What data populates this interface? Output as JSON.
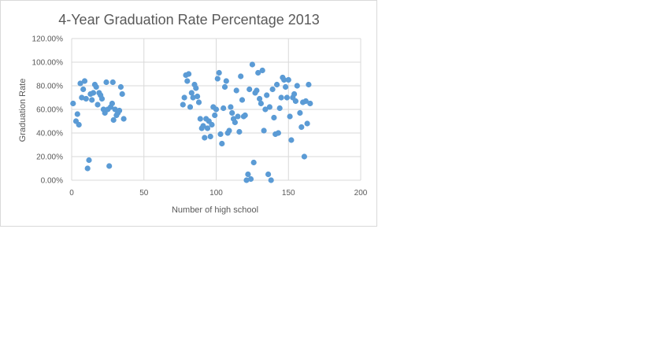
{
  "chart_data": {
    "type": "scatter",
    "title": "4-Year Graduation Rate Percentage 2013",
    "xlabel": "Number  of high school",
    "ylabel": "Graduation Rate",
    "xlim": [
      0,
      200
    ],
    "ylim": [
      0,
      1.2
    ],
    "x_ticks": [
      "0",
      "50",
      "100",
      "150",
      "200"
    ],
    "y_ticks": [
      "0.00%",
      "20.00%",
      "40.00%",
      "60.00%",
      "80.00%",
      "100.00%",
      "120.00%"
    ],
    "grid": true,
    "legend": "none",
    "marker_color": "#5b9bd5",
    "points": [
      [
        1,
        0.65
      ],
      [
        3,
        0.5
      ],
      [
        4,
        0.56
      ],
      [
        5,
        0.47
      ],
      [
        6,
        0.82
      ],
      [
        7,
        0.7
      ],
      [
        8,
        0.77
      ],
      [
        9,
        0.84
      ],
      [
        10,
        0.69
      ],
      [
        11,
        0.1
      ],
      [
        12,
        0.17
      ],
      [
        13,
        0.73
      ],
      [
        14,
        0.68
      ],
      [
        15,
        0.74
      ],
      [
        16,
        0.81
      ],
      [
        17,
        0.79
      ],
      [
        18,
        0.64
      ],
      [
        19,
        0.74
      ],
      [
        20,
        0.72
      ],
      [
        21,
        0.69
      ],
      [
        22,
        0.6
      ],
      [
        23,
        0.57
      ],
      [
        24,
        0.83
      ],
      [
        25,
        0.6
      ],
      [
        26,
        0.12
      ],
      [
        27,
        0.62
      ],
      [
        28,
        0.65
      ],
      [
        28.5,
        0.83
      ],
      [
        29,
        0.51
      ],
      [
        30,
        0.6
      ],
      [
        31,
        0.55
      ],
      [
        32,
        0.57
      ],
      [
        33,
        0.59
      ],
      [
        34,
        0.79
      ],
      [
        35,
        0.73
      ],
      [
        36,
        0.52
      ],
      [
        77,
        0.64
      ],
      [
        78,
        0.7
      ],
      [
        79,
        0.89
      ],
      [
        80,
        0.84
      ],
      [
        81,
        0.9
      ],
      [
        82,
        0.62
      ],
      [
        83,
        0.74
      ],
      [
        84,
        0.7
      ],
      [
        85,
        0.81
      ],
      [
        86,
        0.78
      ],
      [
        87,
        0.71
      ],
      [
        88,
        0.66
      ],
      [
        89,
        0.52
      ],
      [
        90,
        0.44
      ],
      [
        91,
        0.46
      ],
      [
        92,
        0.36
      ],
      [
        93,
        0.52
      ],
      [
        94,
        0.44
      ],
      [
        95,
        0.5
      ],
      [
        96,
        0.37
      ],
      [
        97,
        0.47
      ],
      [
        98,
        0.62
      ],
      [
        99,
        0.55
      ],
      [
        100,
        0.6
      ],
      [
        101,
        0.86
      ],
      [
        102,
        0.91
      ],
      [
        103,
        0.39
      ],
      [
        104,
        0.31
      ],
      [
        105,
        0.61
      ],
      [
        106,
        0.79
      ],
      [
        107,
        0.84
      ],
      [
        108,
        0.4
      ],
      [
        109,
        0.42
      ],
      [
        110,
        0.62
      ],
      [
        111,
        0.57
      ],
      [
        112,
        0.52
      ],
      [
        113,
        0.49
      ],
      [
        114,
        0.76
      ],
      [
        115,
        0.54
      ],
      [
        116,
        0.41
      ],
      [
        117,
        0.88
      ],
      [
        118,
        0.68
      ],
      [
        119,
        0.54
      ],
      [
        120,
        0.55
      ],
      [
        121,
        0.0
      ],
      [
        122,
        0.05
      ],
      [
        123,
        0.77
      ],
      [
        124,
        0.01
      ],
      [
        125,
        0.98
      ],
      [
        126,
        0.15
      ],
      [
        127,
        0.74
      ],
      [
        128,
        0.76
      ],
      [
        129,
        0.91
      ],
      [
        130,
        0.69
      ],
      [
        131,
        0.65
      ],
      [
        132,
        0.93
      ],
      [
        133,
        0.42
      ],
      [
        134,
        0.6
      ],
      [
        135,
        0.72
      ],
      [
        136,
        0.05
      ],
      [
        137,
        0.62
      ],
      [
        138,
        0.0
      ],
      [
        139,
        0.77
      ],
      [
        140,
        0.53
      ],
      [
        141,
        0.39
      ],
      [
        142,
        0.81
      ],
      [
        143,
        0.4
      ],
      [
        144,
        0.61
      ],
      [
        145,
        0.7
      ],
      [
        146,
        0.87
      ],
      [
        147,
        0.85
      ],
      [
        148,
        0.79
      ],
      [
        149,
        0.7
      ],
      [
        150,
        0.85
      ],
      [
        151,
        0.54
      ],
      [
        152,
        0.34
      ],
      [
        153,
        0.7
      ],
      [
        154,
        0.73
      ],
      [
        155,
        0.67
      ],
      [
        156,
        0.8
      ],
      [
        158,
        0.57
      ],
      [
        159,
        0.45
      ],
      [
        160,
        0.66
      ],
      [
        161,
        0.2
      ],
      [
        162,
        0.67
      ],
      [
        163,
        0.48
      ],
      [
        164,
        0.81
      ],
      [
        165,
        0.65
      ]
    ]
  }
}
